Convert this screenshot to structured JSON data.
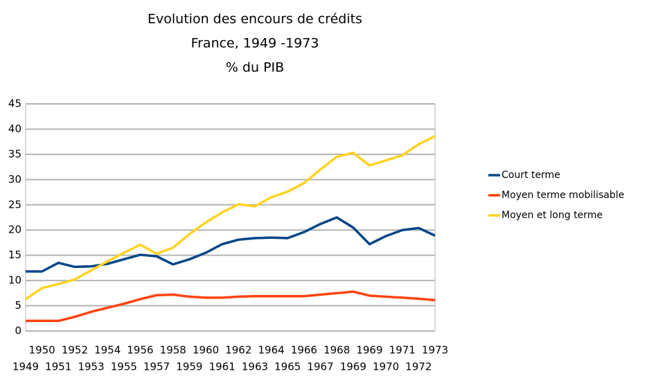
{
  "chart_data": {
    "type": "line",
    "title": "Evolution des encours de crédits",
    "subtitle": "France, 1949 -1973",
    "ylabel": "% du PIB",
    "categories": [
      "1949",
      "1950",
      "1951",
      "1952",
      "1953",
      "1954",
      "1955",
      "1956",
      "1957",
      "1958",
      "1959",
      "1960",
      "1961",
      "1962",
      "1963",
      "1964",
      "1965",
      "1966",
      "1967",
      "1968",
      "1969",
      "1969",
      "1970",
      "1971",
      "1972",
      "1973"
    ],
    "series": [
      {
        "name": "Court terme",
        "color": "#004586",
        "values": [
          11.8,
          11.8,
          13.5,
          12.7,
          12.8,
          13.3,
          14.2,
          15.1,
          14.8,
          13.2,
          14.2,
          15.5,
          17.2,
          18.1,
          18.4,
          18.5,
          18.4,
          19.6,
          21.2,
          22.5,
          20.5,
          17.2,
          18.8,
          20,
          20.4,
          18.9
        ]
      },
      {
        "name": "Moyen terme mobilisable",
        "color": "#ff420e",
        "values": [
          2,
          2,
          2,
          2.8,
          3.8,
          4.6,
          5.4,
          6.3,
          7.1,
          7.2,
          6.8,
          6.6,
          6.6,
          6.8,
          6.9,
          6.9,
          6.9,
          6.9,
          7.2,
          7.5,
          7.8,
          7,
          6.8,
          6.6,
          6.4,
          6.1
        ]
      },
      {
        "name": "Moyen et long terme",
        "color": "#ffd320",
        "values": [
          6.3,
          8.5,
          9.3,
          10.2,
          12,
          13.8,
          15.5,
          17.1,
          15.3,
          16.5,
          19.2,
          21.5,
          23.5,
          25.1,
          24.7,
          26.5,
          27.6,
          29.3,
          32,
          34.5,
          35.3,
          32.8,
          33.8,
          34.8,
          37,
          38.6
        ]
      }
    ],
    "ylim": [
      0,
      45
    ],
    "yticks": [
      0,
      5,
      10,
      15,
      20,
      25,
      30,
      35,
      40,
      45
    ],
    "grid": true,
    "legend": "right"
  }
}
